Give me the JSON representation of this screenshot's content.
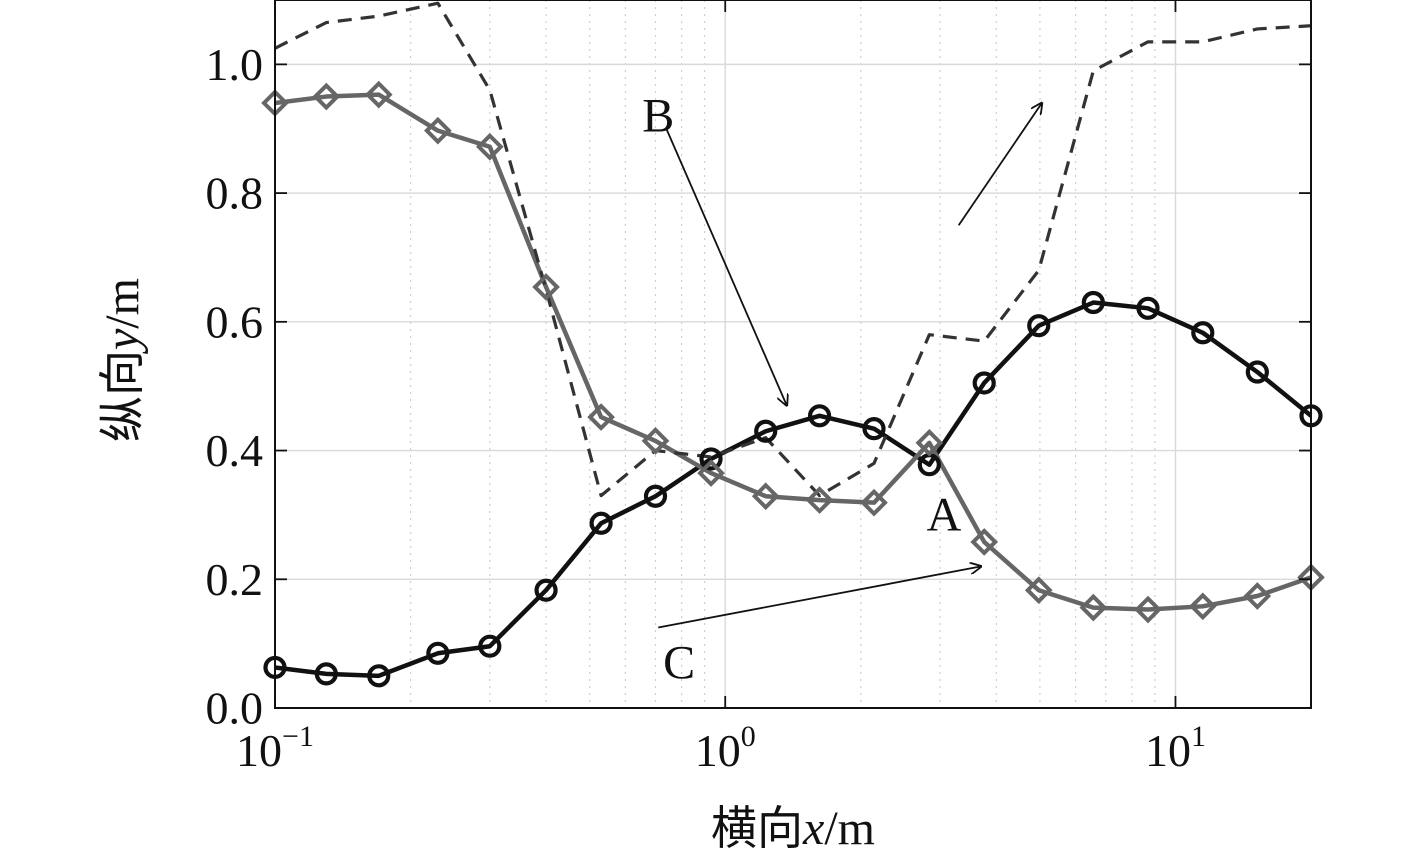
{
  "chart_data": {
    "type": "line",
    "xscale": "log",
    "xlim": [
      0.1,
      20
    ],
    "ylim": [
      0.0,
      1.1
    ],
    "xlabel": {
      "prefix": "横向",
      "var": "x",
      "unit": "/m"
    },
    "ylabel": {
      "prefix": "纵向",
      "var": "y",
      "unit": "/m"
    },
    "grid": true,
    "y_ticks": [
      "0.0",
      "0.2",
      "0.4",
      "0.6",
      "0.8",
      "1.0"
    ],
    "y_tick_values": [
      0.0,
      0.2,
      0.4,
      0.6,
      0.8,
      1.0
    ],
    "x_ticks": [
      {
        "base": "10",
        "exp": "−1",
        "value": 0.1
      },
      {
        "base": "10",
        "exp": "0",
        "value": 1
      },
      {
        "base": "10",
        "exp": "1",
        "value": 10
      }
    ],
    "series": [
      {
        "marker": "circle",
        "color": "#111111",
        "style": "solid",
        "x": [
          0.1,
          0.13,
          0.17,
          0.23,
          0.3,
          0.4,
          0.53,
          0.7,
          0.93,
          1.23,
          1.62,
          2.14,
          2.84,
          3.76,
          4.97,
          6.57,
          8.69,
          11.5,
          15.2,
          20.0
        ],
        "y": [
          0.063,
          0.053,
          0.05,
          0.085,
          0.096,
          0.183,
          0.287,
          0.329,
          0.387,
          0.43,
          0.454,
          0.434,
          0.378,
          0.505,
          0.594,
          0.63,
          0.621,
          0.583,
          0.522,
          0.454
        ]
      },
      {
        "marker": "diamond",
        "color": "#666666",
        "style": "solid",
        "x": [
          0.1,
          0.13,
          0.17,
          0.23,
          0.3,
          0.4,
          0.53,
          0.7,
          0.93,
          1.23,
          1.62,
          2.14,
          2.84,
          3.76,
          4.97,
          6.57,
          8.69,
          11.5,
          15.2,
          20.0
        ],
        "y": [
          0.94,
          0.95,
          0.953,
          0.897,
          0.872,
          0.654,
          0.452,
          0.415,
          0.365,
          0.329,
          0.323,
          0.319,
          0.412,
          0.258,
          0.183,
          0.156,
          0.153,
          0.158,
          0.174,
          0.203
        ]
      },
      {
        "marker": "none",
        "color": "#333333",
        "style": "dashed",
        "x": [
          0.1,
          0.13,
          0.17,
          0.23,
          0.3,
          0.4,
          0.53,
          0.7,
          0.93,
          1.23,
          1.62,
          2.14,
          2.84,
          3.76,
          4.97,
          6.57,
          8.69,
          11.5,
          15.2,
          20.0
        ],
        "y": [
          1.025,
          1.065,
          1.075,
          1.095,
          0.96,
          0.65,
          0.33,
          0.4,
          0.39,
          0.42,
          0.33,
          0.38,
          0.58,
          0.57,
          0.68,
          0.99,
          1.035,
          1.035,
          1.055,
          1.06
        ]
      }
    ],
    "annotations": [
      {
        "text": "A",
        "label_at": [
          3.06,
          0.3
        ],
        "arrow_from": [
          3.3,
          0.75
        ],
        "arrow_to": [
          5.05,
          0.94
        ]
      },
      {
        "text": "B",
        "label_at": [
          0.71,
          0.92
        ],
        "arrow_from": [
          0.74,
          0.9
        ],
        "arrow_to": [
          1.37,
          0.47
        ]
      },
      {
        "text": "C",
        "label_at": [
          0.79,
          0.07
        ],
        "arrow_from": [
          0.71,
          0.125
        ],
        "arrow_to": [
          3.7,
          0.22
        ]
      }
    ]
  }
}
